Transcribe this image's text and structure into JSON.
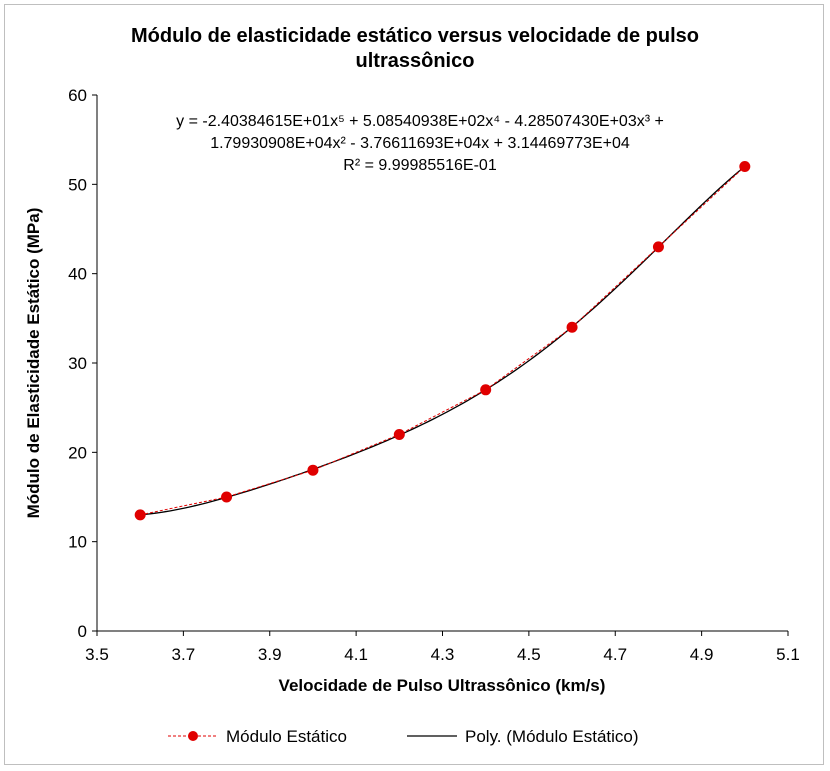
{
  "chart_data": {
    "type": "scatter",
    "title": "Módulo de elasticidade estático versus velocidade de pulso ultrassônico",
    "title_lines": [
      "Módulo de elasticidade estático versus velocidade de pulso",
      "ultrassônico"
    ],
    "xlabel": "Velocidade de Pulso Ultrassônico (km/s)",
    "ylabel": "Módulo de Elasticidade Estático (MPa)",
    "xlim": [
      3.5,
      5.1
    ],
    "ylim": [
      0,
      60
    ],
    "xticks": [
      "3.5",
      "3.7",
      "3.9",
      "4.1",
      "4.3",
      "4.5",
      "4.7",
      "4.9",
      "5.1"
    ],
    "yticks": [
      "0",
      "10",
      "20",
      "30",
      "40",
      "50",
      "60"
    ],
    "grid": false,
    "legend_position": "bottom",
    "series": [
      {
        "name": "Módulo Estático",
        "marker": "circle",
        "line": "dashed",
        "color": "#e00000",
        "x": [
          3.6,
          3.8,
          4.0,
          4.2,
          4.4,
          4.6,
          4.8,
          5.0
        ],
        "y": [
          13,
          15,
          18,
          22,
          27,
          34,
          43,
          52
        ]
      },
      {
        "name": "Poly. (Módulo Estático)",
        "type": "polynomial-trendline",
        "color": "#000000",
        "coefficients_high_to_low": [
          -24.0384615,
          508.540938,
          -4285.0743,
          17993.0908,
          -37661.1693,
          31446.9773
        ]
      }
    ],
    "annotation": {
      "line1": "y = -2.40384615E+01x⁵ + 5.08540938E+02x⁴ - 4.28507430E+03x³ +",
      "line2": "1.79930908E+04x² - 3.76611693E+04x + 3.14469773E+04",
      "line3": "R² = 9.99985516E-01"
    }
  }
}
